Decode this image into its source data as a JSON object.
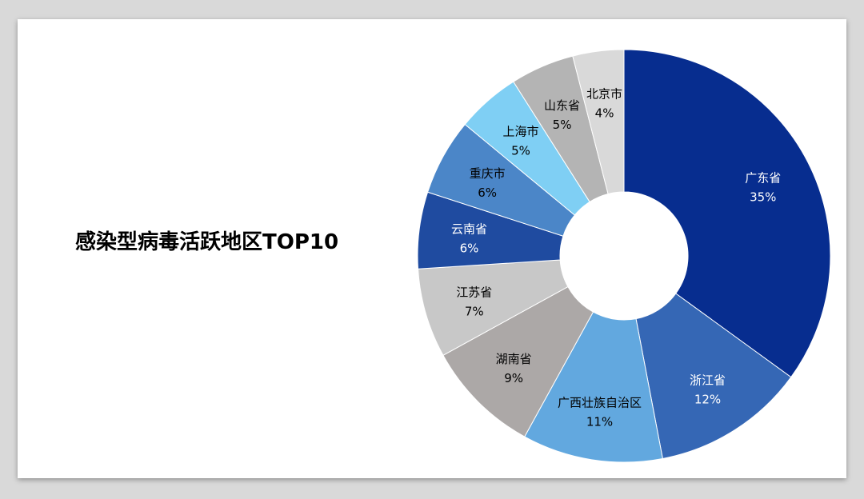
{
  "chart_data": {
    "type": "pie",
    "variant": "donut",
    "title": "感染型病毒活跃地区TOP10",
    "categories": [
      "广东省",
      "浙江省",
      "广西壮族自治区",
      "湖南省",
      "江苏省",
      "云南省",
      "重庆市",
      "上海市",
      "山东省",
      "北京市"
    ],
    "values": [
      35,
      12,
      11,
      9,
      7,
      6,
      6,
      5,
      5,
      4
    ],
    "value_labels": [
      "35%",
      "12%",
      "11%",
      "9%",
      "7%",
      "6%",
      "6%",
      "5%",
      "5%",
      "4%"
    ],
    "colors": [
      "#072d8f",
      "#3567b5",
      "#62a8df",
      "#aca8a7",
      "#c8c8c8",
      "#1f4ba0",
      "#4b86c8",
      "#7fcff4",
      "#b4b4b4",
      "#d9d9d9"
    ],
    "label_colors": [
      "#ffffff",
      "#ffffff",
      "#000000",
      "#000000",
      "#000000",
      "#ffffff",
      "#000000",
      "#000000",
      "#000000",
      "#000000"
    ],
    "legend": "none"
  }
}
